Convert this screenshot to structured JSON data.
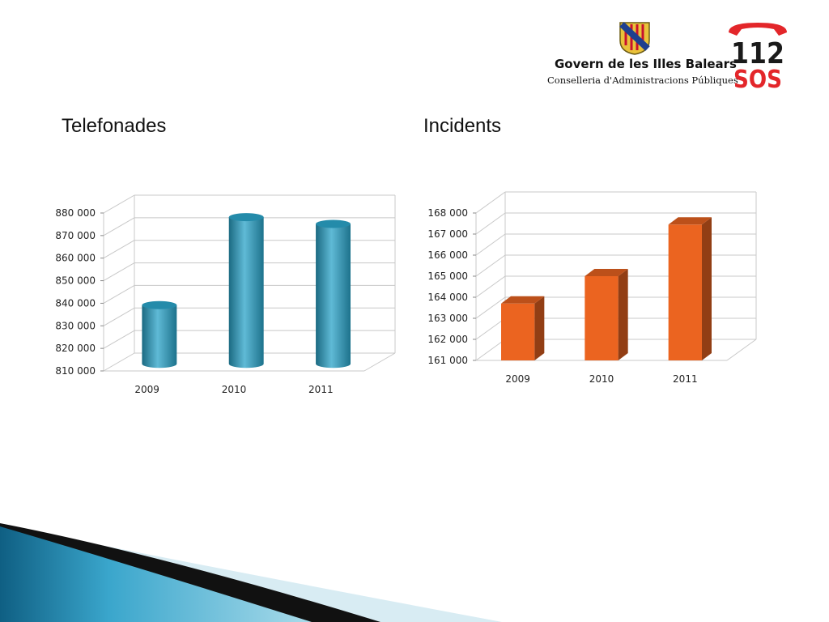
{
  "header": {
    "org_name": "Govern de les Illes Balears",
    "org_department": "Conselleria d'Administracions Públiques",
    "emergency_number": "112",
    "emergency_text": "SOS",
    "colors": {
      "crest_gold": "#e9c23a",
      "crest_stripe": "#c8102e",
      "crest_blue": "#1f3f8f",
      "logo_red": "#e3262a",
      "logo_black": "#1a1a1a"
    }
  },
  "chart_data": [
    {
      "type": "bar",
      "title": "Telefonades",
      "categories": [
        "2009",
        "2010",
        "2011"
      ],
      "values": [
        836000,
        875000,
        872000
      ],
      "ylim": [
        810000,
        880000
      ],
      "yticks": [
        "810 000",
        "820 000",
        "830 000",
        "840 000",
        "850 000",
        "860 000",
        "870 000",
        "880 000"
      ],
      "xlabel": "",
      "ylabel": "",
      "grid": true,
      "style": "3d-cylinder",
      "color": "#2aa3c8"
    },
    {
      "type": "bar",
      "title": "Incidents",
      "categories": [
        "2009",
        "2010",
        "2011"
      ],
      "values": [
        163700,
        165000,
        167450
      ],
      "ylim": [
        161000,
        168000
      ],
      "yticks": [
        "161 000",
        "162 000",
        "163 000",
        "164 000",
        "165 000",
        "166 000",
        "167 000",
        "168 000"
      ],
      "xlabel": "",
      "ylabel": "",
      "grid": true,
      "style": "3d-box",
      "color": "#eb6420"
    }
  ]
}
